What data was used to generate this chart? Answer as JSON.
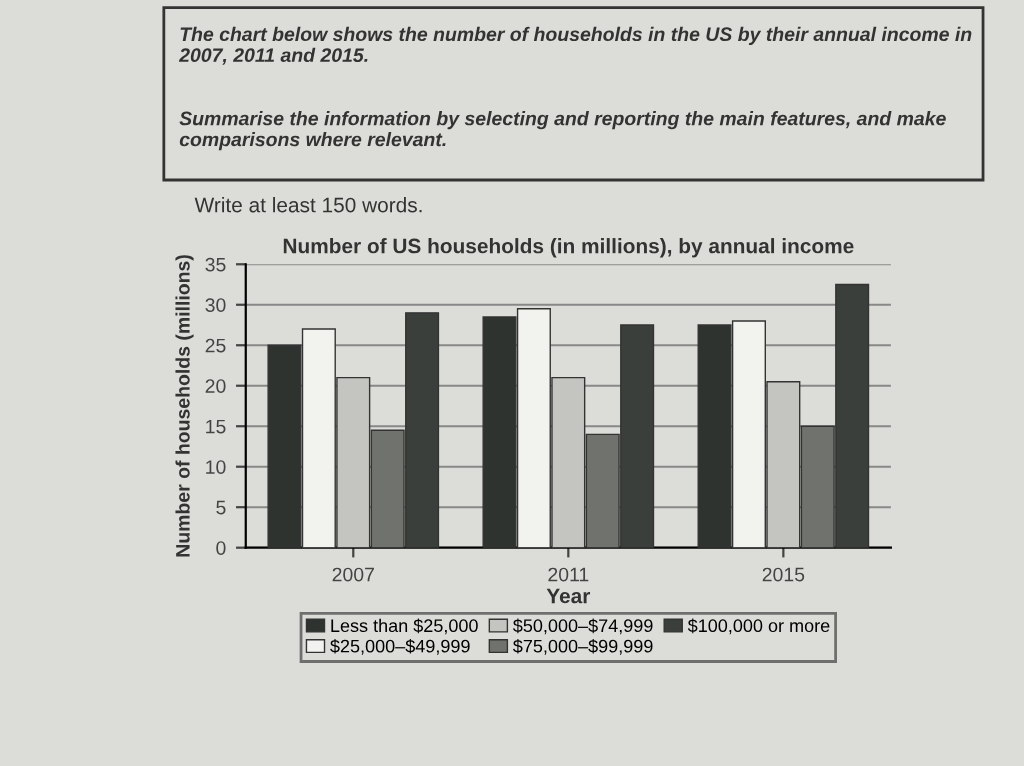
{
  "chart_data": {
    "type": "bar",
    "title": "Number of US households (in millions), by annual income",
    "xlabel": "Year",
    "ylabel": "Number of households (millions)",
    "categories": [
      "2007",
      "2011",
      "2015"
    ],
    "series": [
      {
        "name": "Less than $25,000",
        "color": "#2e3330",
        "values": [
          25,
          28.5,
          27.5
        ]
      },
      {
        "name": "$25,000–$49,999",
        "color": "#f2f2ef",
        "values": [
          27,
          29.5,
          28
        ]
      },
      {
        "name": "$50,000–$74,999",
        "color": "#c4c5c0",
        "values": [
          21,
          21,
          20.5
        ]
      },
      {
        "name": "$75,000–$99,999",
        "color": "#6f726d",
        "values": [
          14.5,
          14,
          15
        ]
      },
      {
        "name": "$100,000 or more",
        "color": "#3b3f3c",
        "values": [
          29,
          27.5,
          32.5
        ]
      }
    ],
    "ylim": [
      0,
      35
    ],
    "yticks": [
      0,
      5,
      10,
      15,
      20,
      25,
      30,
      35
    ],
    "grid": "y",
    "legend": "bottom",
    "annotations": [
      "The chart below shows the number of households in the US by their annual income in 2007, 2011 and 2015.",
      "Summarise the information by selecting and reporting the main features, and make comparisons where relevant.",
      "Write at least 150 words."
    ]
  }
}
